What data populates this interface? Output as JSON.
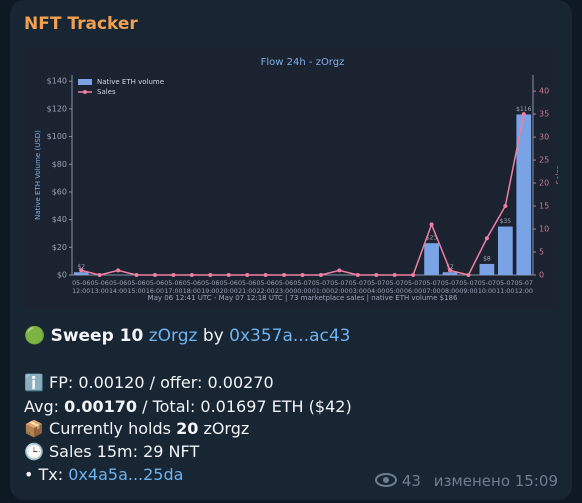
{
  "header": {
    "title": "NFT Tracker"
  },
  "chart_data": {
    "type": "bar",
    "title": "Flow 24h - zOrgz",
    "xlabel": "May 06 12:41 UTC - May 07 12:18 UTC | 73 marketplace sales | native ETH volume $186",
    "ylabel": "Native ETH Volume (USD)",
    "y2label": "Sales",
    "categories": [
      "05-06 12:00",
      "05-06 13:00",
      "05-06 14:00",
      "05-06 15:00",
      "05-06 16:00",
      "05-06 17:00",
      "05-06 18:00",
      "05-06 19:00",
      "05-06 20:00",
      "05-06 21:00",
      "05-06 22:00",
      "05-06 23:00",
      "05-07 00:00",
      "05-07 01:00",
      "05-07 02:00",
      "05-07 03:00",
      "05-07 04:00",
      "05-07 05:00",
      "05-07 06:00",
      "05-07 07:00",
      "05-07 08:00",
      "05-07 09:00",
      "05-07 10:00",
      "05-07 11:00",
      "05-07 12:00"
    ],
    "series": [
      {
        "name": "Native ETH volume",
        "type": "bar",
        "color": "#7aa3e5",
        "values": [
          2,
          0,
          0,
          0,
          0,
          0,
          0,
          0,
          0,
          0,
          0,
          0,
          0,
          0,
          0,
          0,
          0,
          0,
          0,
          23,
          2,
          0,
          8,
          35,
          116
        ],
        "value_labels": [
          "$2",
          null,
          null,
          null,
          null,
          null,
          null,
          null,
          null,
          null,
          null,
          null,
          null,
          null,
          null,
          null,
          null,
          null,
          null,
          "$23",
          "$2",
          null,
          "$8",
          "$35",
          "$116"
        ]
      },
      {
        "name": "Sales",
        "type": "line",
        "axis": "y2",
        "color": "#ef7fa3",
        "values": [
          1,
          0,
          1,
          0,
          0,
          0,
          0,
          0,
          0,
          0,
          0,
          0,
          0,
          0,
          1,
          0,
          0,
          0,
          0,
          11,
          1,
          0,
          8,
          15,
          35
        ]
      }
    ],
    "ylim": [
      0,
      144.5
    ],
    "yticks": [
      {
        "value": 0,
        "label": "$0"
      },
      {
        "value": 20,
        "label": "$20"
      },
      {
        "value": 40,
        "label": "$40"
      },
      {
        "value": 60,
        "label": "$60"
      },
      {
        "value": 80,
        "label": "$80"
      },
      {
        "value": 100,
        "label": "$100"
      },
      {
        "value": 120,
        "label": "$120"
      },
      {
        "value": 140,
        "label": "$140"
      }
    ],
    "y2lim": [
      0,
      43.5
    ],
    "y2ticks": [
      0,
      5,
      10,
      15,
      20,
      25,
      30,
      35,
      40
    ],
    "legend": "upper left"
  },
  "message": {
    "sweep": {
      "icon": "🟢",
      "action": "Sweep 10",
      "collection": "zOrgz",
      "by": "by",
      "buyer": "0x357a...ac43"
    },
    "floor": {
      "icon": "ℹ️",
      "text": "FP: 0.00120 / offer: 0.00270"
    },
    "avg": {
      "label": "Avg:",
      "value": "0.00170",
      "rest": "/ Total: 0.01697 ETH ($42)"
    },
    "holds": {
      "icon": "📦",
      "text": "Currently holds",
      "count": "20",
      "collection": "zOrgz"
    },
    "sales": {
      "icon": "🕒",
      "text": "Sales 15m: 29 NFT"
    },
    "tx": {
      "label": "• Tx:",
      "hash": "0x4a5a...25da"
    }
  },
  "footer": {
    "views": "43",
    "edited": "изменено 15:09"
  }
}
